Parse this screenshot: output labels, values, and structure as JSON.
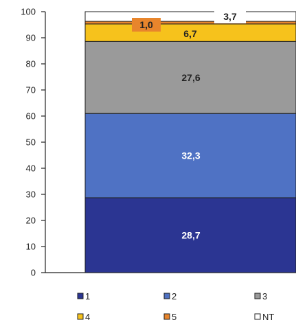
{
  "chart_data": {
    "type": "bar",
    "stacked": true,
    "categories": [
      ""
    ],
    "ylim": [
      0,
      100
    ],
    "yticks": [
      0,
      10,
      20,
      30,
      40,
      50,
      60,
      70,
      80,
      90,
      100
    ],
    "grid": false,
    "legend_position": "bottom",
    "series": [
      {
        "name": "1",
        "values": [
          28.7
        ],
        "label": "28,7",
        "color": "#2b3592",
        "label_color": "#ffffff"
      },
      {
        "name": "2",
        "values": [
          32.3
        ],
        "label": "32,3",
        "color": "#4f72c4",
        "label_color": "#ffffff"
      },
      {
        "name": "3",
        "values": [
          27.6
        ],
        "label": "27,6",
        "color": "#9a9a9a",
        "label_color": "#222222"
      },
      {
        "name": "4",
        "values": [
          6.7
        ],
        "label": "6,7",
        "color": "#f6c21c",
        "label_color": "#222222"
      },
      {
        "name": "5",
        "values": [
          1.0
        ],
        "label": "1,0",
        "color": "#e8852c",
        "label_color": "#222222"
      },
      {
        "name": "NT",
        "values": [
          3.7
        ],
        "label": "3,7",
        "color": "#ffffff",
        "label_color": "#222222"
      }
    ]
  }
}
